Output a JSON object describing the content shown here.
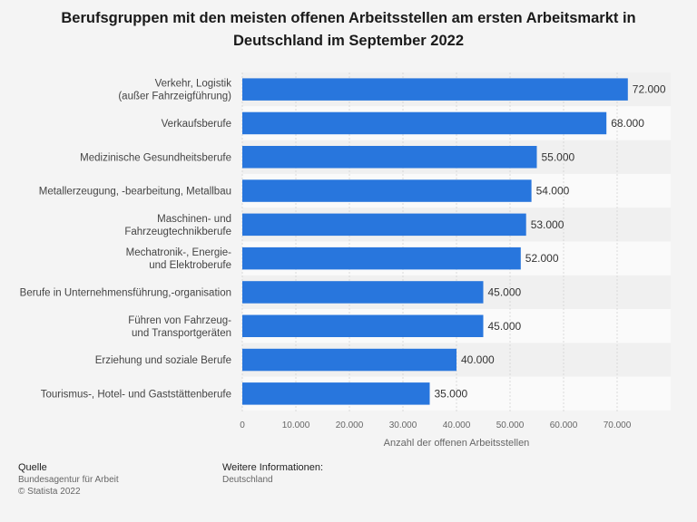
{
  "chart_data": {
    "type": "bar",
    "orientation": "horizontal",
    "title": "Berufsgruppen mit den meisten offenen Arbeitsstellen am ersten Arbeitsmarkt in Deutschland im September 2022",
    "categories": [
      [
        "Verkehr, Logistik",
        "(außer Fahrzeigführung)"
      ],
      [
        "Verkaufsberufe"
      ],
      [
        "Medizinische Gesundheitsberufe"
      ],
      [
        "Metallerzeugung, -bearbeitung, Metallbau"
      ],
      [
        "Maschinen- und",
        "Fahrzeugtechnikberufe"
      ],
      [
        "Mechatronik-, Energie-",
        "und Elektroberufe"
      ],
      [
        "Berufe in Unternehmensführung,-organisation"
      ],
      [
        "Führen von Fahrzeug-",
        "und Transportgeräten"
      ],
      [
        "Erziehung und soziale Berufe"
      ],
      [
        "Tourismus-, Hotel- und Gaststättenberufe"
      ]
    ],
    "values": [
      72000,
      68000,
      55000,
      54000,
      53000,
      52000,
      45000,
      45000,
      40000,
      35000
    ],
    "value_labels": [
      "72.000",
      "68.000",
      "55.000",
      "54.000",
      "53.000",
      "52.000",
      "45.000",
      "45.000",
      "40.000",
      "35.000"
    ],
    "xlabel": "Anzahl der offenen Arbeitsstellen",
    "xlim": [
      0,
      80000
    ],
    "xticks": [
      0,
      10000,
      20000,
      30000,
      40000,
      50000,
      60000,
      70000
    ],
    "xtick_labels": [
      "0",
      "10.000",
      "20.000",
      "30.000",
      "40.000",
      "50.000",
      "60.000",
      "70.000"
    ],
    "bar_color": "#2876dd",
    "grid": true,
    "legend": false
  },
  "footer": {
    "source_heading": "Quelle",
    "source_lines": [
      "Bundesagentur für Arbeit",
      "© Statista 2022"
    ],
    "info_heading": "Weitere Informationen:",
    "info_lines": [
      "Deutschland"
    ]
  }
}
